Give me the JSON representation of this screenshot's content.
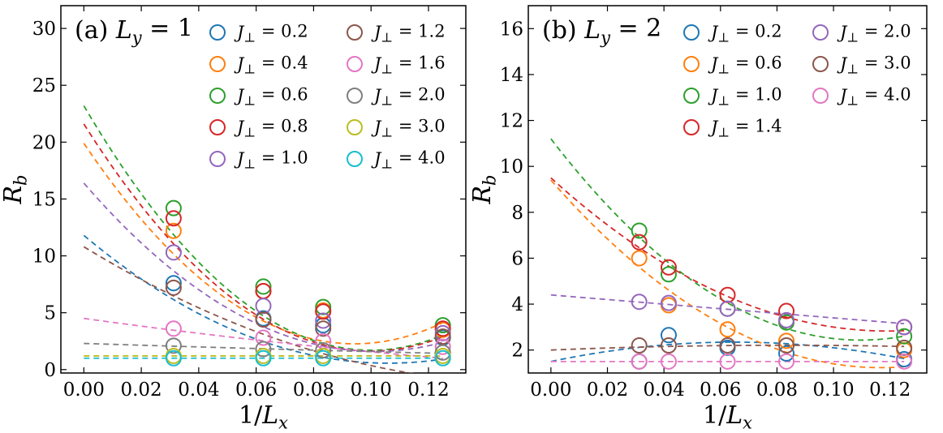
{
  "chart_data": [
    {
      "type": "scatter",
      "panel_title": "(a) L_y = 1",
      "xlabel": "1/L_x",
      "ylabel": "R_b",
      "xlim": [
        -0.008,
        0.133
      ],
      "ylim": [
        -0.3,
        32
      ],
      "xticks": [
        0.0,
        0.02,
        0.04,
        0.06,
        0.08,
        0.1,
        0.12
      ],
      "xtick_labels": [
        "0.00",
        "0.02",
        "0.04",
        "0.06",
        "0.08",
        "0.10",
        "0.12"
      ],
      "yticks": [
        0,
        5,
        10,
        15,
        20,
        25,
        30
      ],
      "ytick_labels": [
        "0",
        "5",
        "10",
        "15",
        "20",
        "25",
        "30"
      ],
      "legend_columns": 2,
      "x_points": [
        0.03125,
        0.0625,
        0.08333,
        0.125
      ],
      "series": [
        {
          "name": "J_⊥ = 0.2",
          "color": "#1f77b4",
          "values": [
            7.6,
            4.5,
            3.9,
            2.8
          ],
          "fit": [
            11.8,
            -212,
            1000
          ]
        },
        {
          "name": "J_⊥ = 0.4",
          "color": "#ff7f0e",
          "values": [
            12.2,
            6.9,
            5.2,
            3.5
          ],
          "fit": [
            19.9,
            -374,
            1983
          ]
        },
        {
          "name": "J_⊥ = 0.6",
          "color": "#2ca02c",
          "values": [
            14.2,
            7.3,
            5.5,
            3.9
          ],
          "fit": [
            23.2,
            -430,
            2150
          ]
        },
        {
          "name": "J_⊥ = 0.8",
          "color": "#d62728",
          "values": [
            13.3,
            6.9,
            5.1,
            3.6
          ],
          "fit": [
            21.6,
            -400,
            2002
          ]
        },
        {
          "name": "J_⊥ = 1.0",
          "color": "#9467bd",
          "values": [
            10.3,
            5.6,
            4.3,
            3.2
          ],
          "fit": [
            16.4,
            -292,
            1440
          ]
        },
        {
          "name": "J_⊥ = 1.2",
          "color": "#8c564b",
          "values": [
            7.2,
            4.4,
            3.6,
            2.9
          ],
          "fit": [
            10.8,
            -154,
            495
          ]
        },
        {
          "name": "J_⊥ = 1.6",
          "color": "#e377c2",
          "values": [
            3.6,
            2.8,
            2.5,
            2.0
          ],
          "fit": [
            4.5,
            -35,
            56
          ]
        },
        {
          "name": "J_⊥ = 2.0",
          "color": "#7f7f7f",
          "values": [
            2.1,
            1.8,
            1.7,
            1.5
          ],
          "fit": [
            2.3,
            -8,
            8
          ]
        },
        {
          "name": "J_⊥ = 3.0",
          "color": "#bcbd22",
          "values": [
            1.2,
            1.2,
            1.2,
            1.2
          ],
          "fit": [
            1.2,
            0,
            0
          ]
        },
        {
          "name": "J_⊥ = 4.0",
          "color": "#17becf",
          "values": [
            1.0,
            1.0,
            1.0,
            1.0
          ],
          "fit": [
            1.0,
            0,
            0
          ]
        }
      ]
    },
    {
      "type": "scatter",
      "panel_title": "(b) L_y = 2",
      "xlabel": "1/L_x",
      "ylabel": "R_b",
      "xlim": [
        -0.008,
        0.133
      ],
      "ylim": [
        1.0,
        17
      ],
      "xticks": [
        0.0,
        0.02,
        0.04,
        0.06,
        0.08,
        0.1,
        0.12
      ],
      "xtick_labels": [
        "0.00",
        "0.02",
        "0.04",
        "0.06",
        "0.08",
        "0.10",
        "0.12"
      ],
      "yticks": [
        2,
        4,
        6,
        8,
        10,
        12,
        14,
        16
      ],
      "ytick_labels": [
        "2",
        "4",
        "6",
        "8",
        "10",
        "12",
        "14",
        "16"
      ],
      "legend_columns": 2,
      "x_points": [
        0.03125,
        0.04167,
        0.0625,
        0.08333,
        0.125
      ],
      "series": [
        {
          "name": "J_⊥ = 0.2",
          "color": "#1f77b4",
          "values": [
            1.5,
            2.65,
            2.1,
            1.85,
            1.6
          ],
          "fit": [
            1.5,
            26,
            -200
          ]
        },
        {
          "name": "J_⊥ = 0.6",
          "color": "#ff7f0e",
          "values": [
            6.0,
            3.95,
            2.9,
            2.4,
            2.0
          ],
          "fit": [
            9.4,
            -140,
            600
          ]
        },
        {
          "name": "J_⊥ = 1.0",
          "color": "#2ca02c",
          "values": [
            7.2,
            5.3,
            3.8,
            3.2,
            2.6
          ],
          "fit": [
            11.2,
            -160,
            730
          ]
        },
        {
          "name": "J_⊥ = 1.4",
          "color": "#d62728",
          "values": [
            6.7,
            5.6,
            4.4,
            3.7,
            3.0
          ],
          "fit": [
            9.5,
            -112,
            470
          ]
        },
        {
          "name": "J_⊥ = 2.0",
          "color": "#9467bd",
          "values": [
            4.1,
            4.05,
            3.8,
            3.3,
            3.0
          ],
          "fit": [
            4.4,
            -10,
            0
          ]
        },
        {
          "name": "J_⊥ = 3.0",
          "color": "#8c564b",
          "values": [
            2.2,
            2.2,
            2.2,
            2.2,
            2.1
          ],
          "fit": [
            2.0,
            5,
            -30
          ]
        },
        {
          "name": "J_⊥ = 4.0",
          "color": "#e377c2",
          "values": [
            1.5,
            1.5,
            1.5,
            1.5,
            1.5
          ],
          "fit": [
            1.5,
            0,
            0
          ]
        }
      ]
    }
  ]
}
